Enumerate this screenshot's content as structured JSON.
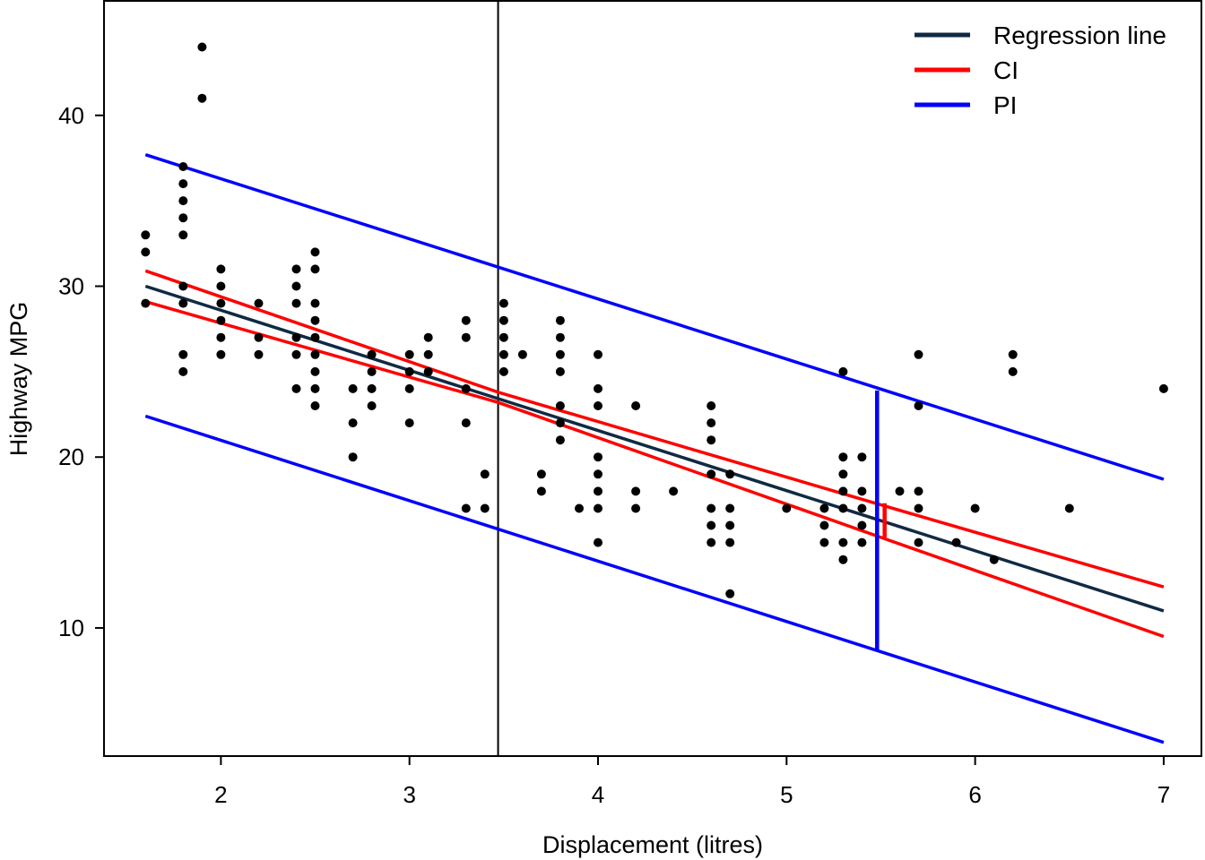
{
  "chart_data": {
    "type": "scatter",
    "xlabel": "Displacement (litres)",
    "ylabel": "Highway MPG",
    "xlim": [
      1.38,
      7.2
    ],
    "ylim": [
      2.5,
      46.7
    ],
    "x_ticks": [
      2,
      3,
      4,
      5,
      6,
      7
    ],
    "y_ticks": [
      10,
      20,
      30,
      40
    ],
    "x_tick_labels": [
      "2",
      "3",
      "4",
      "5",
      "6",
      "7"
    ],
    "y_tick_labels": [
      "10",
      "20",
      "30",
      "40"
    ],
    "grid": false,
    "legend_position": "top-right",
    "legend": [
      {
        "label": "Regression line",
        "color": "#102a43"
      },
      {
        "label": "CI",
        "color": "#ff0000"
      },
      {
        "label": "PI",
        "color": "#0000ff"
      }
    ],
    "series": [
      {
        "name": "Regression line",
        "kind": "line",
        "color": "#102a43",
        "x": [
          1.6,
          7.0
        ],
        "y": [
          30.0,
          11.0
        ]
      },
      {
        "name": "CI",
        "kind": "band",
        "color": "#ff0000",
        "x": [
          1.6,
          3.47,
          5.5,
          7.0
        ],
        "y_upper": [
          30.9,
          23.8,
          17.2,
          12.4
        ],
        "y_lower": [
          29.1,
          23.2,
          15.3,
          9.5
        ]
      },
      {
        "name": "PI",
        "kind": "band",
        "color": "#0000ff",
        "x": [
          1.6,
          7.0
        ],
        "y_upper": [
          37.7,
          18.7
        ],
        "y_lower": [
          22.4,
          3.3
        ]
      },
      {
        "name": "observations",
        "kind": "points",
        "color": "#000000",
        "points": [
          [
            1.6,
            33
          ],
          [
            1.6,
            32
          ],
          [
            1.6,
            29
          ],
          [
            1.8,
            37
          ],
          [
            1.8,
            36
          ],
          [
            1.8,
            35
          ],
          [
            1.8,
            34
          ],
          [
            1.8,
            33
          ],
          [
            1.8,
            30
          ],
          [
            1.8,
            29
          ],
          [
            1.8,
            26
          ],
          [
            1.8,
            25
          ],
          [
            1.9,
            44
          ],
          [
            1.9,
            41
          ],
          [
            2.0,
            31
          ],
          [
            2.0,
            30
          ],
          [
            2.0,
            29
          ],
          [
            2.0,
            28
          ],
          [
            2.0,
            27
          ],
          [
            2.0,
            26
          ],
          [
            2.2,
            29
          ],
          [
            2.2,
            27
          ],
          [
            2.2,
            26
          ],
          [
            2.4,
            31
          ],
          [
            2.4,
            30
          ],
          [
            2.4,
            29
          ],
          [
            2.4,
            27
          ],
          [
            2.4,
            26
          ],
          [
            2.4,
            24
          ],
          [
            2.5,
            32
          ],
          [
            2.5,
            31
          ],
          [
            2.5,
            29
          ],
          [
            2.5,
            28
          ],
          [
            2.5,
            27
          ],
          [
            2.5,
            26
          ],
          [
            2.5,
            25
          ],
          [
            2.5,
            24
          ],
          [
            2.5,
            23
          ],
          [
            2.7,
            24
          ],
          [
            2.7,
            22
          ],
          [
            2.7,
            20
          ],
          [
            2.8,
            26
          ],
          [
            2.8,
            25
          ],
          [
            2.8,
            24
          ],
          [
            2.8,
            23
          ],
          [
            3.0,
            26
          ],
          [
            3.0,
            25
          ],
          [
            3.0,
            24
          ],
          [
            3.0,
            22
          ],
          [
            3.1,
            27
          ],
          [
            3.1,
            26
          ],
          [
            3.1,
            25
          ],
          [
            3.3,
            28
          ],
          [
            3.3,
            27
          ],
          [
            3.3,
            24
          ],
          [
            3.3,
            22
          ],
          [
            3.3,
            17
          ],
          [
            3.4,
            19
          ],
          [
            3.4,
            17
          ],
          [
            3.5,
            29
          ],
          [
            3.5,
            28
          ],
          [
            3.5,
            27
          ],
          [
            3.5,
            26
          ],
          [
            3.5,
            25
          ],
          [
            3.6,
            26
          ],
          [
            3.7,
            19
          ],
          [
            3.7,
            18
          ],
          [
            3.8,
            28
          ],
          [
            3.8,
            27
          ],
          [
            3.8,
            26
          ],
          [
            3.8,
            25
          ],
          [
            3.8,
            23
          ],
          [
            3.8,
            22
          ],
          [
            3.8,
            21
          ],
          [
            3.9,
            17
          ],
          [
            4.0,
            26
          ],
          [
            4.0,
            24
          ],
          [
            4.0,
            23
          ],
          [
            4.0,
            20
          ],
          [
            4.0,
            19
          ],
          [
            4.0,
            18
          ],
          [
            4.0,
            17
          ],
          [
            4.0,
            15
          ],
          [
            4.2,
            23
          ],
          [
            4.2,
            18
          ],
          [
            4.2,
            17
          ],
          [
            4.4,
            18
          ],
          [
            4.6,
            23
          ],
          [
            4.6,
            22
          ],
          [
            4.6,
            21
          ],
          [
            4.6,
            19
          ],
          [
            4.6,
            17
          ],
          [
            4.6,
            16
          ],
          [
            4.6,
            15
          ],
          [
            4.7,
            19
          ],
          [
            4.7,
            17
          ],
          [
            4.7,
            16
          ],
          [
            4.7,
            15
          ],
          [
            4.7,
            12
          ],
          [
            5.0,
            17
          ],
          [
            5.2,
            17
          ],
          [
            5.2,
            16
          ],
          [
            5.2,
            15
          ],
          [
            5.3,
            25
          ],
          [
            5.3,
            20
          ],
          [
            5.3,
            19
          ],
          [
            5.3,
            18
          ],
          [
            5.3,
            17
          ],
          [
            5.3,
            15
          ],
          [
            5.3,
            14
          ],
          [
            5.4,
            20
          ],
          [
            5.4,
            18
          ],
          [
            5.4,
            17
          ],
          [
            5.4,
            16
          ],
          [
            5.4,
            15
          ],
          [
            5.6,
            18
          ],
          [
            5.7,
            26
          ],
          [
            5.7,
            23
          ],
          [
            5.7,
            18
          ],
          [
            5.7,
            17
          ],
          [
            5.7,
            15
          ],
          [
            5.9,
            15
          ],
          [
            6.0,
            17
          ],
          [
            6.1,
            14
          ],
          [
            6.2,
            26
          ],
          [
            6.2,
            25
          ],
          [
            6.5,
            17
          ],
          [
            7.0,
            24
          ]
        ]
      }
    ],
    "vertical_line": {
      "x": 3.47,
      "color": "#000000"
    },
    "pi_interval_marker": {
      "x": 5.48,
      "y_low": 8.7,
      "y_high": 23.9,
      "color": "#0000ff"
    },
    "ci_interval_marker": {
      "x": 5.52,
      "y_low": 15.3,
      "y_high": 17.3,
      "color": "#ff0000"
    }
  }
}
